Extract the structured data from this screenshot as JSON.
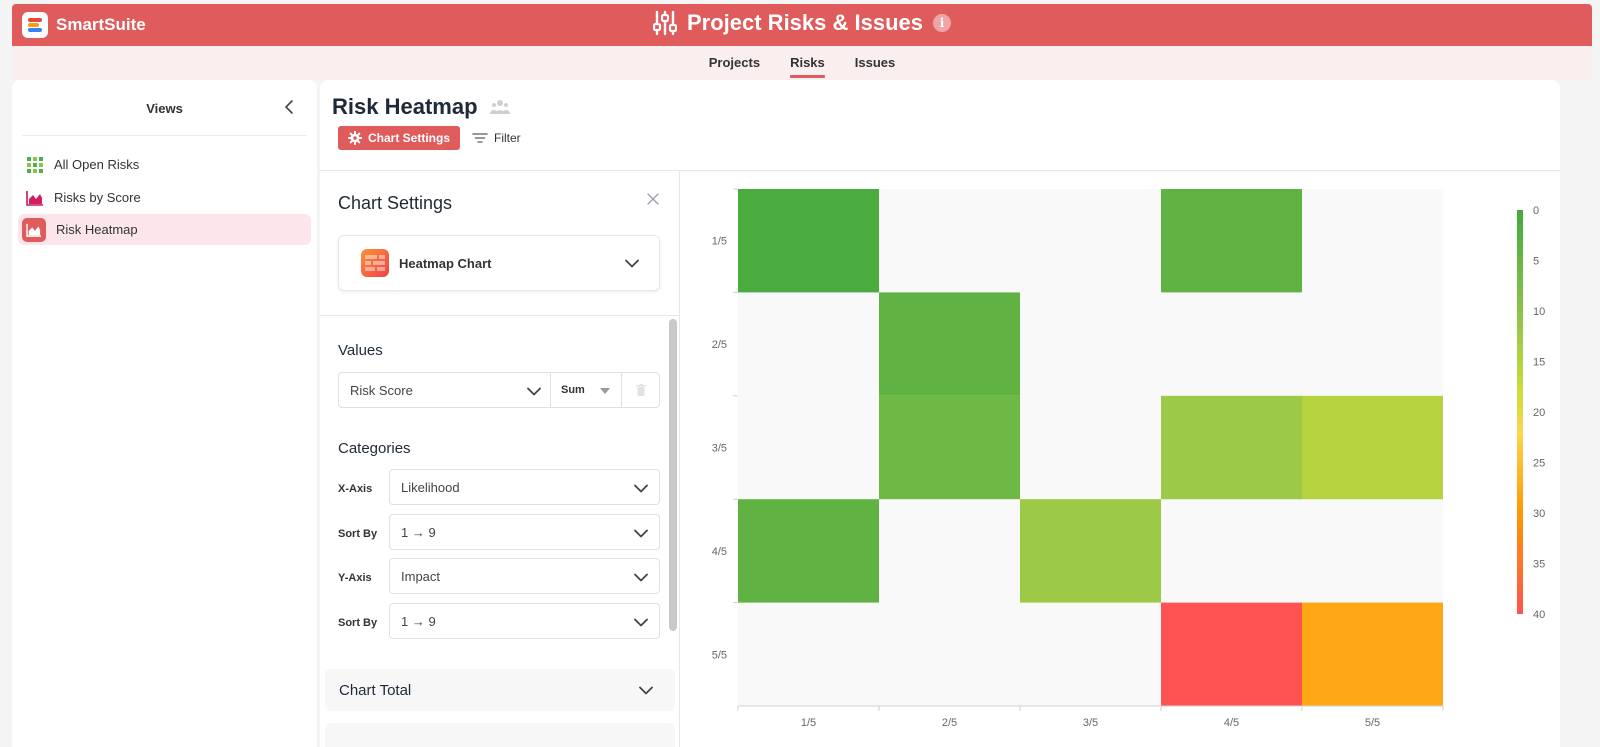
{
  "app": {
    "name": "SmartSuite",
    "page_title": "Project Risks & Issues"
  },
  "nav_tabs": [
    {
      "label": "Projects",
      "active": false
    },
    {
      "label": "Risks",
      "active": true
    },
    {
      "label": "Issues",
      "active": false
    }
  ],
  "sidebar": {
    "title": "Views",
    "items": [
      {
        "label": "All Open Risks",
        "icon": "grid-view-icon",
        "active": false
      },
      {
        "label": "Risks by Score",
        "icon": "area-chart-icon",
        "active": false
      },
      {
        "label": "Risk Heatmap",
        "icon": "heatmap-view-icon",
        "active": true
      }
    ]
  },
  "view": {
    "title": "Risk Heatmap",
    "chart_settings_label": "Chart Settings",
    "filter_label": "Filter"
  },
  "settings_panel": {
    "title": "Chart Settings",
    "chart_type": "Heatmap Chart",
    "values": {
      "label": "Values",
      "field": "Risk Score",
      "aggregation": "Sum"
    },
    "categories": {
      "label": "Categories",
      "x_axis_label": "X-Axis",
      "x_axis_value": "Likelihood",
      "x_sort_label": "Sort By",
      "x_sort_value": "1 → 9",
      "y_axis_label": "Y-Axis",
      "y_axis_value": "Impact",
      "y_sort_label": "Sort By",
      "y_sort_value": "1 → 9"
    },
    "chart_total_label": "Chart Total"
  },
  "colors": {
    "brand": "#e05c5c",
    "scale": [
      "#43a93d",
      "#8bc34a",
      "#cddc39",
      "#ffc107",
      "#ff9800",
      "#ff5252"
    ]
  },
  "chart_data": {
    "type": "heatmap",
    "x_categories": [
      "1/5",
      "2/5",
      "3/5",
      "4/5",
      "5/5"
    ],
    "y_categories": [
      "1/5",
      "2/5",
      "3/5",
      "4/5",
      "5/5"
    ],
    "values": [
      [
        1,
        null,
        null,
        4,
        null
      ],
      [
        null,
        4,
        null,
        null,
        null
      ],
      [
        null,
        6,
        null,
        12,
        15
      ],
      [
        4,
        null,
        12,
        null,
        null
      ],
      [
        null,
        null,
        null,
        40,
        28
      ]
    ],
    "legend": {
      "ticks": [
        0,
        5,
        10,
        15,
        20,
        25,
        30,
        35,
        40
      ],
      "min": 0,
      "max": 40,
      "position": "right"
    }
  }
}
